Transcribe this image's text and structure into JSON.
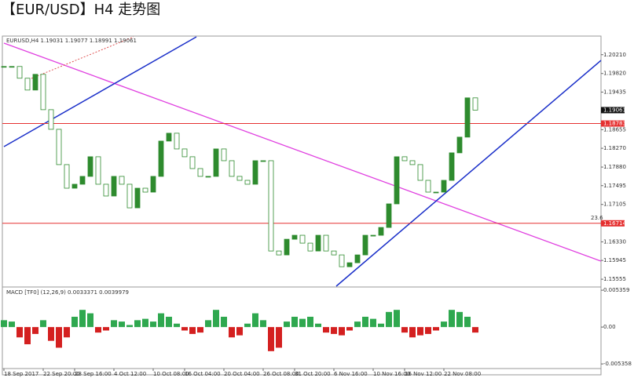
{
  "chart_data": {
    "type": "candlestick",
    "title": "【EUR/USD】H4 走势图",
    "header": "EURUSD,H4  1.19031 1.19077 1.18991 1.19061",
    "categories": [
      "18 Sep 2017",
      null,
      null,
      null,
      null,
      "22 Sep 20:00",
      null,
      null,
      null,
      "28 Sep 16:00",
      null,
      null,
      null,
      null,
      "4 Oct 12:00",
      null,
      null,
      null,
      null,
      "10 Oct 08:00",
      null,
      null,
      null,
      "16 Oct 04:00",
      null,
      null,
      null,
      null,
      "20 Oct 04:00",
      null,
      null,
      null,
      null,
      "26 Oct 08:00",
      null,
      null,
      null,
      "31 Oct 20:00",
      null,
      null,
      null,
      null,
      "6 Nov 16:00",
      null,
      null,
      null,
      null,
      "10 Nov 16:00",
      null,
      null,
      null,
      "16 Nov 12:00",
      null,
      null,
      null,
      null,
      "22 Nov 08:00",
      null,
      null,
      null,
      null
    ],
    "close": [
      1.19966,
      1.19966,
      1.19722,
      1.19477,
      1.19803,
      1.1907,
      1.18663,
      1.17931,
      1.17442,
      1.17524,
      1.17687,
      1.18094,
      1.17524,
      1.1728,
      1.17687,
      1.17524,
      1.17035,
      1.17442,
      1.17361,
      1.17687,
      1.18419,
      1.18582,
      1.18256,
      1.18094,
      1.17849,
      1.17687,
      1.17687,
      1.18256,
      1.18012,
      1.17687,
      1.17605,
      1.17524,
      1.18012,
      1.18012,
      1.1614,
      1.16059,
      1.16384,
      1.16466,
      1.16303,
      1.1614,
      1.16466,
      1.1614,
      1.16059,
      1.15814,
      1.15896,
      1.16059,
      1.16466,
      1.16466,
      1.16628,
      1.17117,
      1.18094,
      1.18012,
      1.17931,
      1.17605,
      1.17361,
      1.17361,
      1.17605,
      1.18175,
      1.18501,
      1.19315,
      1.19061
    ],
    "up_color": "#2e8b2e",
    "down_color": "#2e8b2e",
    "ylim": [
      1.1541,
      1.2058
    ],
    "yticks": [
      {
        "value": 1.2021,
        "label": "1.20210"
      },
      {
        "value": 1.1982,
        "label": "1.19820"
      },
      1.19435,
      1.18655,
      {
        "value": 1.1827,
        "label": "1.18270"
      },
      {
        "value": 1.1788,
        "label": "1.17880"
      },
      1.17495,
      1.17105,
      {
        "value": 1.1633,
        "label": "1.16330"
      },
      1.15945,
      1.15555
    ],
    "last_price": 1.19061,
    "levels": [
      1.18783,
      1.16714
    ],
    "level_color": "#e53030",
    "fib_label": "23.6",
    "macd": {
      "header": "MACD [TF0] (12,26,9) 0.0033371 0.0039979",
      "values": [
        0.001,
        0.0008,
        -0.0015,
        -0.0025,
        -0.001,
        0.001,
        -0.002,
        -0.003,
        -0.0015,
        0.0015,
        0.0025,
        0.002,
        -0.0008,
        -0.0005,
        0.001,
        0.0008,
        0.0003,
        0.001,
        0.0012,
        0.0008,
        0.002,
        0.0015,
        0.0005,
        -0.0005,
        -0.001,
        -0.0008,
        0.001,
        0.0025,
        0.0015,
        -0.0015,
        -0.0012,
        0.0005,
        0.002,
        0.001,
        -0.0035,
        -0.003,
        0.0008,
        0.0015,
        0.0012,
        0.0015,
        0.0005,
        -0.0008,
        -0.001,
        -0.0012,
        -0.0005,
        0.0008,
        0.0015,
        0.0012,
        0.0005,
        0.0022,
        0.0025,
        -0.0008,
        -0.0015,
        -0.0012,
        -0.001,
        -0.0005,
        0.0008,
        0.0025,
        0.0022,
        0.0015,
        -0.0008
      ],
      "pos_color": "#2fa84f",
      "neg_color": "#d42020",
      "ylim": [
        -0.0058,
        0.0056
      ],
      "yticks": [
        {
          "value": 0.0053599,
          "label": "0.005359"
        },
        {
          "value": 0,
          "label": "0.00"
        },
        {
          "value": -0.005358,
          "label": "-0.005358"
        }
      ]
    }
  }
}
